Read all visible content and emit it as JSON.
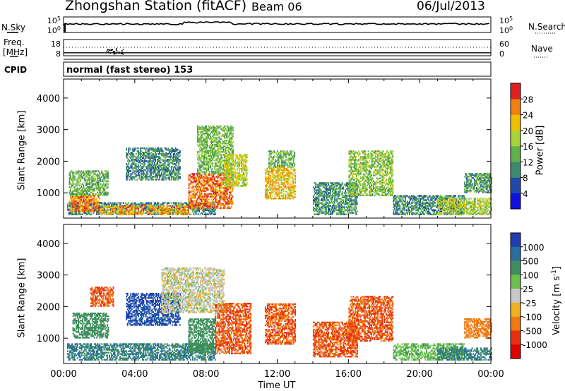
{
  "header": {
    "title": "Zhongshan Station (fitACF)",
    "beam": "Beam 06",
    "date": "06/Jul/2013"
  },
  "top_panels": {
    "nsky_label": "N.Sky",
    "nsky_ticks": [
      "10^5",
      "10^0"
    ],
    "nsearch_label": "N.Search",
    "nsearch_ticks": [
      "10^5",
      "10^0"
    ],
    "freq_label_line1": "Freq.",
    "freq_label_line2": "[MHz]",
    "freq_ticks": [
      "18",
      "8"
    ],
    "nave_label": "Nave",
    "nave_ticks": [
      "60",
      "0"
    ],
    "cpid_label": "CPID",
    "cpid_text": "normal (fast stereo) 153"
  },
  "chart_data": [
    {
      "type": "heatmap",
      "panel": "power",
      "xlabel": "",
      "ylabel": "Slant Range [km]",
      "xlim": [
        0,
        24
      ],
      "ylim": [
        200,
        4600
      ],
      "ytick_values": [
        1000,
        2000,
        3000,
        4000
      ],
      "ytick_labels": [
        "1000",
        "2000",
        "3000",
        "4000"
      ],
      "colorbar": {
        "label": "Power [dB]",
        "range": [
          0,
          32
        ],
        "tick_values": [
          4,
          8,
          12,
          16,
          20,
          24,
          28
        ],
        "tick_labels": [
          "4",
          "8",
          "12",
          "16",
          "20",
          "24",
          "28"
        ],
        "colors": [
          "#1010e0",
          "#1f4aa8",
          "#3f8a6e",
          "#5fb14a",
          "#a8d43a",
          "#f0c000",
          "#f08010",
          "#e02020"
        ]
      },
      "regions": [
        {
          "t0": 0.2,
          "t1": 8.5,
          "r0": 300,
          "r1": 700,
          "value": 10
        },
        {
          "t0": 0.3,
          "t1": 2.0,
          "r0": 400,
          "r1": 900,
          "value": 26
        },
        {
          "t0": 0.3,
          "t1": 2.5,
          "r0": 900,
          "r1": 1700,
          "value": 14
        },
        {
          "t0": 2.0,
          "t1": 7.0,
          "r0": 300,
          "r1": 600,
          "value": 24
        },
        {
          "t0": 3.5,
          "t1": 6.5,
          "r0": 1400,
          "r1": 2400,
          "value": 10
        },
        {
          "t0": 7.0,
          "t1": 9.5,
          "r0": 500,
          "r1": 1600,
          "value": 27
        },
        {
          "t0": 7.5,
          "t1": 9.5,
          "r0": 1600,
          "r1": 3100,
          "value": 15
        },
        {
          "t0": 9.0,
          "t1": 10.3,
          "r0": 1200,
          "r1": 2200,
          "value": 19
        },
        {
          "t0": 11.3,
          "t1": 13.0,
          "r0": 800,
          "r1": 1800,
          "value": 22
        },
        {
          "t0": 11.5,
          "t1": 13.0,
          "r0": 1800,
          "r1": 2300,
          "value": 14
        },
        {
          "t0": 14.0,
          "t1": 16.5,
          "r0": 300,
          "r1": 1300,
          "value": 11
        },
        {
          "t0": 16.0,
          "t1": 18.5,
          "r0": 900,
          "r1": 2300,
          "value": 16
        },
        {
          "t0": 18.5,
          "t1": 22.5,
          "r0": 300,
          "r1": 900,
          "value": 10
        },
        {
          "t0": 21.0,
          "t1": 24.0,
          "r0": 300,
          "r1": 800,
          "value": 18
        },
        {
          "t0": 22.5,
          "t1": 24.0,
          "r0": 1000,
          "r1": 1600,
          "value": 12
        }
      ]
    },
    {
      "type": "heatmap",
      "panel": "velocity",
      "xlabel": "Time UT",
      "ylabel": "Slant Range [km]",
      "xlim": [
        0,
        24
      ],
      "ylim": [
        200,
        4600
      ],
      "xtick_values": [
        0,
        4,
        8,
        12,
        16,
        20,
        24
      ],
      "xtick_labels": [
        "00:00",
        "04:00",
        "08:00",
        "12:00",
        "16:00",
        "20:00",
        "00:00"
      ],
      "ytick_values": [
        1000,
        2000,
        3000,
        4000
      ],
      "ytick_labels": [
        "1000",
        "2000",
        "3000",
        "4000"
      ],
      "colorbar": {
        "label": "Velocity [m s^-1]",
        "tick_labels": [
          "1000",
          "500",
          "100",
          "25",
          "-25",
          "-100",
          "-500",
          "-1000"
        ],
        "colors": [
          "#1f3fb0",
          "#2a6fa0",
          "#3f8f5e",
          "#6ac04a",
          "#c8c8c8",
          "#f0b020",
          "#f07a10",
          "#e83010",
          "#e00000"
        ]
      },
      "regions": [
        {
          "t0": 0.2,
          "t1": 8.5,
          "r0": 300,
          "r1": 800,
          "value": 300
        },
        {
          "t0": 0.5,
          "t1": 2.5,
          "r0": 1000,
          "r1": 1800,
          "value": 200
        },
        {
          "t0": 1.5,
          "t1": 2.8,
          "r0": 2000,
          "r1": 2600,
          "value": -300
        },
        {
          "t0": 3.5,
          "t1": 6.5,
          "r0": 1400,
          "r1": 2400,
          "value": 800
        },
        {
          "t0": 5.5,
          "t1": 9.0,
          "r0": 1800,
          "r1": 3200,
          "value": 0
        },
        {
          "t0": 7.0,
          "t1": 8.5,
          "r0": 500,
          "r1": 1600,
          "value": 200
        },
        {
          "t0": 8.5,
          "t1": 10.5,
          "r0": 500,
          "r1": 2100,
          "value": -300
        },
        {
          "t0": 11.3,
          "t1": 13.0,
          "r0": 800,
          "r1": 2100,
          "value": -300
        },
        {
          "t0": 14.0,
          "t1": 16.5,
          "r0": 400,
          "r1": 1500,
          "value": -300
        },
        {
          "t0": 16.0,
          "t1": 18.5,
          "r0": 900,
          "r1": 2300,
          "value": -300
        },
        {
          "t0": 18.5,
          "t1": 22.5,
          "r0": 300,
          "r1": 800,
          "value": 50
        },
        {
          "t0": 21.0,
          "t1": 24.0,
          "r0": 300,
          "r1": 700,
          "value": 300
        },
        {
          "t0": 22.5,
          "t1": 24.0,
          "r0": 1000,
          "r1": 1600,
          "value": -150
        }
      ]
    }
  ],
  "aux_series": {
    "nsky_level": 0.45,
    "nsearch_level": 0.5,
    "freq_mhz": 12,
    "nave": 30
  }
}
